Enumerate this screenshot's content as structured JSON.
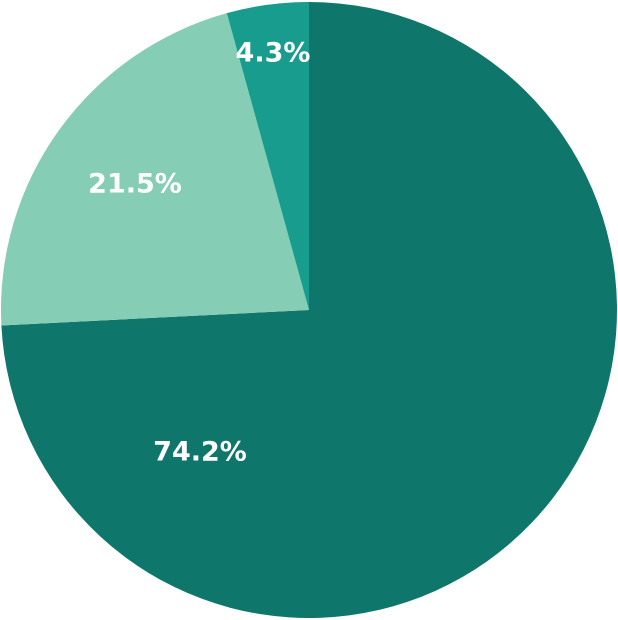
{
  "chart_data": {
    "type": "pie",
    "start_angle_deg": 0,
    "direction": "clockwise",
    "slices": [
      {
        "value": 74.2,
        "label": "74.2%",
        "color": "#0f766b"
      },
      {
        "value": 21.5,
        "label": "21.5%",
        "color": "#86cdb6"
      },
      {
        "value": 4.3,
        "label": "4.3%",
        "color": "#179c8e"
      }
    ]
  }
}
